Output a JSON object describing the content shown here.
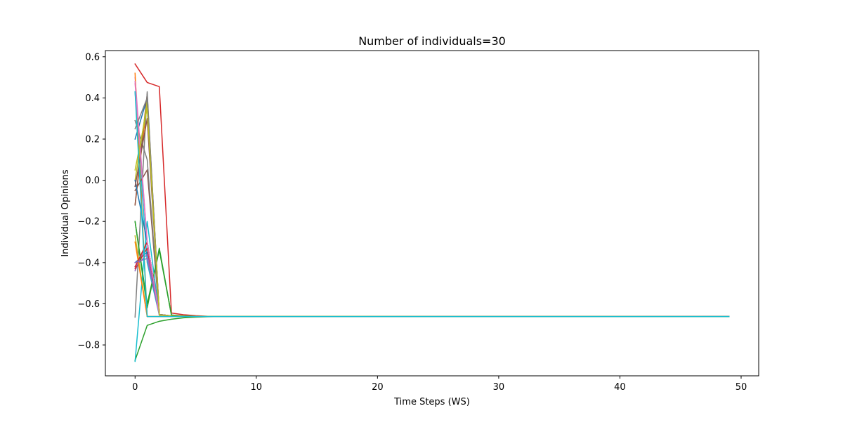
{
  "chart_data": {
    "type": "line",
    "title": "Number of individuals=30",
    "xlabel": "Time Steps (WS)",
    "ylabel": "Individual Opinions",
    "xlim": [
      -2.45,
      51.45
    ],
    "ylim": [
      -0.95,
      0.63
    ],
    "xticks": [
      0,
      10,
      20,
      30,
      40,
      50
    ],
    "yticks": [
      -0.8,
      -0.6,
      -0.4,
      -0.2,
      0.0,
      0.2,
      0.4,
      0.6
    ],
    "ytick_labels": [
      "−0.8",
      "−0.6",
      "−0.4",
      "−0.2",
      "0.0",
      "0.2",
      "0.4",
      "0.6"
    ],
    "x_end": 49,
    "consensus_value": -0.662,
    "grid": false,
    "legend": "none",
    "series": [
      {
        "color": "#1f77b4",
        "values": [
          0.2,
          0.4,
          -0.654,
          -0.659,
          -0.661
        ]
      },
      {
        "color": "#ff7f0e",
        "values": [
          -0.12,
          0.38,
          -0.654,
          -0.659,
          -0.661
        ]
      },
      {
        "color": "#2ca02c",
        "values": [
          -0.875,
          -0.705,
          -0.685,
          -0.675,
          -0.668,
          -0.665,
          -0.663,
          -0.662
        ]
      },
      {
        "color": "#d62728",
        "values": [
          0.565,
          0.475,
          0.455,
          -0.645,
          -0.653,
          -0.658,
          -0.661
        ]
      },
      {
        "color": "#9467bd",
        "values": [
          -0.44,
          -0.3,
          -0.652,
          -0.659,
          -0.661
        ]
      },
      {
        "color": "#8c564b",
        "values": [
          -0.12,
          0.42,
          -0.652,
          -0.659,
          -0.661
        ]
      },
      {
        "color": "#e377c2",
        "values": [
          0.5,
          -0.3,
          -0.653,
          -0.659,
          -0.661
        ]
      },
      {
        "color": "#7f7f7f",
        "values": [
          -0.665,
          0.43,
          -0.652,
          -0.659,
          -0.661
        ]
      },
      {
        "color": "#bcbd22",
        "values": [
          -0.27,
          -0.662,
          -0.662,
          -0.662
        ]
      },
      {
        "color": "#17becf",
        "values": [
          0.43,
          -0.4,
          -0.655,
          -0.659,
          -0.661
        ]
      },
      {
        "color": "#1f77b4",
        "values": [
          -0.4,
          -0.35,
          -0.652,
          -0.659,
          -0.661
        ]
      },
      {
        "color": "#ff7f0e",
        "values": [
          0.52,
          -0.662,
          -0.662,
          -0.662
        ]
      },
      {
        "color": "#2ca02c",
        "values": [
          -0.2,
          -0.62,
          -0.33,
          -0.655,
          -0.659,
          -0.661
        ]
      },
      {
        "color": "#d62728",
        "values": [
          -0.43,
          -0.33,
          -0.652,
          -0.659,
          -0.661
        ]
      },
      {
        "color": "#9467bd",
        "values": [
          -0.42,
          -0.36,
          -0.652,
          -0.659,
          -0.661
        ]
      },
      {
        "color": "#8c564b",
        "values": [
          -0.05,
          0.05,
          -0.655,
          -0.659,
          -0.661
        ]
      },
      {
        "color": "#e377c2",
        "values": [
          0.48,
          -0.31,
          -0.653,
          -0.659,
          -0.661
        ]
      },
      {
        "color": "#7f7f7f",
        "values": [
          0.29,
          0.1,
          -0.652,
          -0.659,
          -0.661
        ]
      },
      {
        "color": "#bcbd22",
        "values": [
          0.0,
          0.38,
          -0.654,
          -0.659,
          -0.661
        ]
      },
      {
        "color": "#17becf",
        "values": [
          -0.88,
          -0.2,
          -0.654,
          -0.659,
          -0.661
        ]
      },
      {
        "color": "#1f77b4",
        "values": [
          0.0,
          -0.3,
          -0.654,
          -0.659,
          -0.661
        ]
      },
      {
        "color": "#ff7f0e",
        "values": [
          -0.3,
          -0.662,
          -0.662,
          -0.662
        ]
      },
      {
        "color": "#2ca02c",
        "values": [
          -0.2,
          -0.6,
          -0.34,
          -0.655,
          -0.659,
          -0.661
        ]
      },
      {
        "color": "#d62728",
        "values": [
          -0.42,
          -0.3,
          -0.652,
          -0.659,
          -0.661
        ]
      },
      {
        "color": "#9467bd",
        "values": [
          -0.4,
          -0.38,
          -0.652,
          -0.659,
          -0.661
        ]
      },
      {
        "color": "#8c564b",
        "values": [
          -0.03,
          0.3,
          -0.652,
          -0.659,
          -0.661
        ]
      },
      {
        "color": "#e377c2",
        "values": [
          0.47,
          -0.3,
          -0.653,
          -0.659,
          -0.661
        ]
      },
      {
        "color": "#7f7f7f",
        "values": [
          0.25,
          0.4,
          -0.652,
          -0.659,
          -0.661
        ]
      },
      {
        "color": "#bcbd22",
        "values": [
          0.05,
          0.35,
          -0.654,
          -0.659,
          -0.661
        ]
      },
      {
        "color": "#17becf",
        "values": [
          0.43,
          -0.662,
          -0.662,
          -0.662
        ]
      }
    ]
  }
}
